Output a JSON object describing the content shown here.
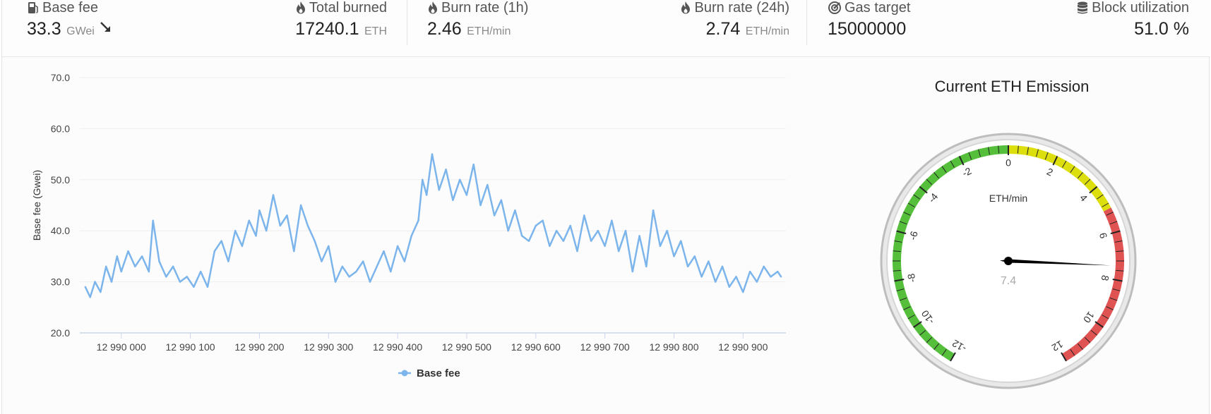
{
  "stats": [
    {
      "title": "Base fee",
      "value": "33.3",
      "unit": "GWei",
      "icon": "gas-pump-icon",
      "trend": "down-right-arrow-icon"
    },
    {
      "title": "Total burned",
      "value": "17240.1",
      "unit": "ETH",
      "icon": "flame-icon"
    },
    {
      "title": "Burn rate (1h)",
      "value": "2.46",
      "unit": "ETH/min",
      "icon": "flame-icon"
    },
    {
      "title": "Burn rate (24h)",
      "value": "2.74",
      "unit": "ETH/min",
      "icon": "flame-icon"
    },
    {
      "title": "Gas target",
      "value": "15000000",
      "unit": "",
      "icon": "target-icon"
    },
    {
      "title": "Block utilization",
      "value": "51.0 %",
      "unit": "",
      "icon": "database-icon"
    }
  ],
  "chart_data": {
    "type": "line",
    "title": "",
    "xlabel": "",
    "ylabel": "Base fee (Gwei)",
    "xlim": [
      12989940,
      12990962
    ],
    "ylim": [
      20,
      70
    ],
    "yticks": [
      "20.0",
      "30.0",
      "40.0",
      "50.0",
      "60.0",
      "70.0"
    ],
    "xticks": [
      {
        "value": 12990000,
        "label": "12 990 000"
      },
      {
        "value": 12990100,
        "label": "12 990 100"
      },
      {
        "value": 12990200,
        "label": "12 990 200"
      },
      {
        "value": 12990300,
        "label": "12 990 300"
      },
      {
        "value": 12990400,
        "label": "12 990 400"
      },
      {
        "value": 12990500,
        "label": "12 990 500"
      },
      {
        "value": 12990600,
        "label": "12 990 600"
      },
      {
        "value": 12990700,
        "label": "12 990 700"
      },
      {
        "value": 12990800,
        "label": "12 990 800"
      },
      {
        "value": 12990900,
        "label": "12 990 900"
      }
    ],
    "grid": true,
    "legend": "bottom-center",
    "series": [
      {
        "name": "Base fee",
        "color": "#7cb5ec",
        "x": [
          12989948,
          12989955,
          12989962,
          12989970,
          12989978,
          12989986,
          12989994,
          12990000,
          12990010,
          12990020,
          12990030,
          12990040,
          12990046,
          12990055,
          12990065,
          12990075,
          12990085,
          12990095,
          12990105,
          12990115,
          12990125,
          12990135,
          12990145,
          12990155,
          12990165,
          12990175,
          12990185,
          12990195,
          12990200,
          12990210,
          12990220,
          12990230,
          12990240,
          12990250,
          12990260,
          12990270,
          12990280,
          12990290,
          12990300,
          12990310,
          12990320,
          12990330,
          12990340,
          12990350,
          12990360,
          12990370,
          12990380,
          12990390,
          12990400,
          12990410,
          12990420,
          12990430,
          12990436,
          12990442,
          12990450,
          12990460,
          12990470,
          12990480,
          12990490,
          12990500,
          12990510,
          12990520,
          12990530,
          12990540,
          12990550,
          12990560,
          12990570,
          12990580,
          12990590,
          12990600,
          12990610,
          12990620,
          12990630,
          12990640,
          12990650,
          12990660,
          12990670,
          12990680,
          12990690,
          12990700,
          12990710,
          12990720,
          12990730,
          12990740,
          12990750,
          12990760,
          12990770,
          12990780,
          12990790,
          12990800,
          12990810,
          12990820,
          12990830,
          12990840,
          12990850,
          12990860,
          12990870,
          12990880,
          12990890,
          12990900,
          12990910,
          12990920,
          12990930,
          12990940,
          12990950,
          12990955
        ],
        "y": [
          29,
          27,
          30,
          28,
          33,
          30,
          35,
          32,
          36,
          33,
          35,
          32,
          42,
          34,
          31,
          33,
          30,
          31,
          29,
          32,
          29,
          36,
          38,
          34,
          40,
          37,
          42,
          39,
          44,
          40,
          47,
          41,
          43,
          36,
          45,
          41,
          38,
          34,
          37,
          30,
          33,
          31,
          32,
          34,
          30,
          33,
          36,
          32,
          37,
          34,
          39,
          42,
          50,
          47,
          55,
          48,
          52,
          46,
          50,
          47,
          53,
          45,
          49,
          43,
          46,
          40,
          44,
          39,
          38,
          41,
          42,
          37,
          40,
          38,
          41,
          36,
          43,
          38,
          40,
          37,
          42,
          36,
          40,
          32,
          39,
          33,
          44,
          37,
          40,
          35,
          38,
          33,
          35,
          31,
          34,
          30,
          33,
          29,
          31,
          28,
          32,
          30,
          33,
          31,
          32,
          31
        ]
      }
    ]
  },
  "gauge": {
    "title": "Current ETH Emission",
    "unit_label": "ETH/min",
    "value": 7.4,
    "value_text": "7.4",
    "min": -12,
    "max": 12,
    "labels": [
      "-12",
      "-10",
      "-8",
      "-6",
      "-4",
      "-2",
      "0",
      "2",
      "4",
      "6",
      "8",
      "10",
      "12"
    ],
    "bands": [
      {
        "from": -12,
        "to": 0,
        "color": "#55BF3B"
      },
      {
        "from": 0,
        "to": 5,
        "color": "#DDDF0D"
      },
      {
        "from": 5,
        "to": 12,
        "color": "#DF5353"
      }
    ]
  }
}
